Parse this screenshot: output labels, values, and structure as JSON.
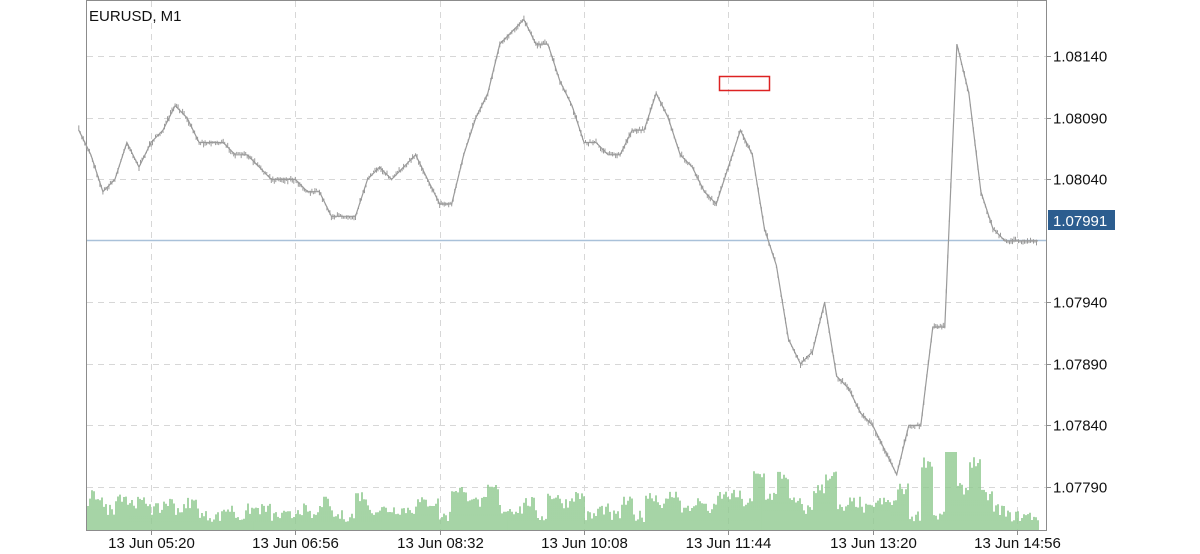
{
  "chart_data": {
    "type": "line",
    "title": "EURUSD, M1",
    "symbol": "EURUSD",
    "timeframe": "M1",
    "y_ticks": [
      "1.08140",
      "1.08090",
      "1.08040",
      "1.07940",
      "1.07890",
      "1.07840",
      "1.07790"
    ],
    "x_ticks": [
      "13 Jun 05:20",
      "13 Jun 06:56",
      "13 Jun 08:32",
      "13 Jun 10:08",
      "13 Jun 11:44",
      "13 Jun 13:20",
      "13 Jun 14:56"
    ],
    "ylim": [
      1.07755,
      1.08185
    ],
    "current_price": "1.07991",
    "grid": true,
    "colors": {
      "price_line": "#9a9a9a",
      "volume": "#8fc98f",
      "current_price_line": "#a9c1d9",
      "badge": "#2c5d8f",
      "highlight": "#dd2222",
      "grid": "#d7d7d7",
      "frame": "#8c8c8c"
    },
    "price_series": {
      "name": "EURUSD",
      "x": [
        "04:32",
        "04:40",
        "04:48",
        "04:56",
        "05:04",
        "05:12",
        "05:20",
        "05:28",
        "05:36",
        "05:44",
        "05:52",
        "06:00",
        "06:08",
        "06:16",
        "06:24",
        "06:32",
        "06:40",
        "06:48",
        "06:56",
        "07:04",
        "07:12",
        "07:20",
        "07:28",
        "07:36",
        "07:44",
        "07:52",
        "08:00",
        "08:08",
        "08:16",
        "08:24",
        "08:32",
        "08:40",
        "08:48",
        "08:56",
        "09:04",
        "09:12",
        "09:20",
        "09:28",
        "09:36",
        "09:44",
        "09:52",
        "10:00",
        "10:08",
        "10:16",
        "10:24",
        "10:32",
        "10:40",
        "10:48",
        "10:56",
        "11:04",
        "11:12",
        "11:20",
        "11:28",
        "11:36",
        "11:44",
        "11:52",
        "12:00",
        "12:08",
        "12:16",
        "12:24",
        "12:32",
        "12:40",
        "12:48",
        "12:56",
        "13:04",
        "13:12",
        "13:20",
        "13:28",
        "13:36",
        "13:44",
        "13:52",
        "14:00",
        "14:08",
        "14:16",
        "14:24",
        "14:32",
        "14:40",
        "14:48",
        "14:56",
        "15:04",
        "15:10"
      ],
      "y": [
        1.0808,
        1.0806,
        1.0803,
        1.0804,
        1.0807,
        1.0805,
        1.0807,
        1.0808,
        1.081,
        1.0809,
        1.0807,
        1.0807,
        1.0807,
        1.0806,
        1.0806,
        1.0805,
        1.0804,
        1.0804,
        1.0804,
        1.0803,
        1.0803,
        1.0801,
        1.0801,
        1.0801,
        1.0804,
        1.0805,
        1.0804,
        1.0805,
        1.0806,
        1.0804,
        1.0802,
        1.0802,
        1.0806,
        1.0809,
        1.0811,
        1.0815,
        1.0816,
        1.0817,
        1.0815,
        1.0815,
        1.0812,
        1.081,
        1.0807,
        1.0807,
        1.0806,
        1.0806,
        1.0808,
        1.0808,
        1.0811,
        1.0809,
        1.0806,
        1.0805,
        1.0803,
        1.0802,
        1.0805,
        1.0808,
        1.0806,
        1.08,
        1.0797,
        1.0791,
        1.0789,
        1.079,
        1.0794,
        1.0788,
        1.0787,
        1.0785,
        1.0784,
        1.0782,
        1.078,
        1.0784,
        1.0784,
        1.0792,
        1.0792,
        1.0815,
        1.0811,
        1.0803,
        1.08,
        1.0799,
        1.0799,
        1.0799,
        1.0799
      ]
    }
  }
}
